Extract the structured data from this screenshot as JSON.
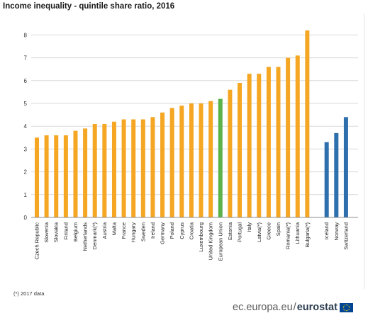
{
  "page": {
    "title": "Income inequality  - quintile  share ratio, 2016",
    "footnote": "(*) 2017 data",
    "brand_domain": "ec.europa.eu",
    "brand_separator": "/",
    "brand_name": "eurostat"
  },
  "colors": {
    "member": "#f5a623",
    "eu": "#5cb34a",
    "efta": "#2e6fad",
    "grid": "#d9d9d9",
    "axis": "#8c8c8c"
  },
  "chart_data": {
    "type": "bar",
    "title": "Income inequality  - quintile  share ratio, 2016",
    "xlabel": "",
    "ylabel": "",
    "ylim": [
      0,
      8.5
    ],
    "yticks": [
      0,
      1,
      2,
      3,
      4,
      5,
      6,
      7,
      8
    ],
    "grid": true,
    "categories": [
      "Czech Republic",
      "Slovenia",
      "Slovakia",
      "Finland",
      "Belgium",
      "Netherlands",
      "Denmark(*)",
      "Austria",
      "Malta",
      "France",
      "Hungary",
      "Sweden",
      "Ireland",
      "Germany",
      "Poland",
      "Cyprus",
      "Croatia",
      "Luxembourg",
      "United Kingdom",
      "European Union",
      "Estonia",
      "Portugal",
      "Italy",
      "Latvia(*)",
      "Greece",
      "Spain",
      "Romania(*)",
      "Lithuania",
      "Bulgaria(*)",
      "Iceland",
      "Norway",
      "Switzerland"
    ],
    "values": [
      3.5,
      3.6,
      3.6,
      3.6,
      3.8,
      3.9,
      4.1,
      4.1,
      4.2,
      4.3,
      4.3,
      4.3,
      4.4,
      4.6,
      4.8,
      4.9,
      5.0,
      5.0,
      5.1,
      5.2,
      5.6,
      5.9,
      6.3,
      6.3,
      6.6,
      6.6,
      7.0,
      7.1,
      8.2,
      3.3,
      3.7,
      4.4
    ],
    "groups": [
      "member",
      "member",
      "member",
      "member",
      "member",
      "member",
      "member",
      "member",
      "member",
      "member",
      "member",
      "member",
      "member",
      "member",
      "member",
      "member",
      "member",
      "member",
      "member",
      "eu",
      "member",
      "member",
      "member",
      "member",
      "member",
      "member",
      "member",
      "member",
      "member",
      "efta",
      "efta",
      "efta"
    ]
  }
}
